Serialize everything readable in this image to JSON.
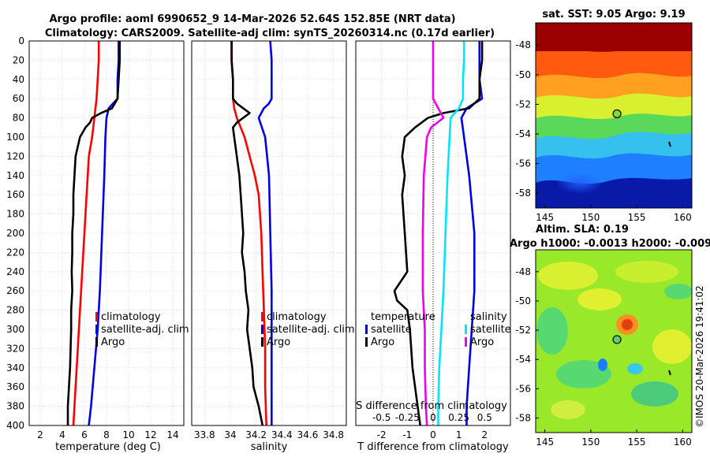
{
  "title": {
    "line1": "Argo profile: aoml 6990652_9 14-Mar-2026 52.64S 152.85E (NRT data)",
    "line2": "Climatology: CARS2009. Satellite-adj clim: synTS_20260314.nc (0.17d earlier)"
  },
  "credit": "©IMOS 20-Mar-2026 19:41:02",
  "colors": {
    "climatology": "#ff0000",
    "satellite": "#0000e0",
    "argo": "#000000",
    "salinity_diff": "#00e5ff",
    "salinity_sat_diff": "#ee00ee"
  },
  "chart_data": [
    {
      "type": "line",
      "title": "",
      "xlabel": "temperature (deg C)",
      "ylabel": "",
      "xlim": [
        1,
        15
      ],
      "ylim": [
        400,
        0
      ],
      "xticks": [
        2,
        4,
        6,
        8,
        10,
        12,
        14
      ],
      "yticks": [
        0,
        20,
        40,
        60,
        80,
        100,
        120,
        140,
        160,
        180,
        200,
        220,
        240,
        260,
        280,
        300,
        320,
        340,
        360,
        380,
        400
      ],
      "grid": true,
      "legend": [
        "climatology",
        "satellite-adj. clim",
        "Argo"
      ],
      "series": [
        {
          "name": "climatology",
          "color": "#ff0000",
          "depth": [
            0,
            20,
            40,
            60,
            70,
            80,
            90,
            100,
            120,
            160,
            200,
            240,
            280,
            320,
            360,
            400
          ],
          "values": [
            7.3,
            7.3,
            7.2,
            7.1,
            7.0,
            6.9,
            6.8,
            6.7,
            6.4,
            6.2,
            6.0,
            5.8,
            5.6,
            5.4,
            5.2,
            5.0
          ]
        },
        {
          "name": "satellite-adj. clim",
          "color": "#0000e0",
          "depth": [
            0,
            20,
            40,
            60,
            65,
            70,
            80,
            100,
            140,
            200,
            260,
            300,
            340,
            380,
            400
          ],
          "values": [
            9.1,
            9.1,
            9.0,
            9.0,
            8.6,
            8.2,
            8.0,
            7.9,
            7.8,
            7.6,
            7.4,
            7.2,
            6.9,
            6.6,
            6.4
          ]
        },
        {
          "name": "Argo",
          "color": "#000000",
          "depth": [
            0,
            20,
            40,
            60,
            70,
            75,
            80,
            85,
            90,
            100,
            110,
            120,
            140,
            160,
            180,
            200,
            220,
            240,
            260,
            280,
            300,
            320,
            340,
            360,
            380,
            400
          ],
          "values": [
            9.2,
            9.2,
            9.1,
            9.0,
            8.5,
            7.5,
            6.7,
            6.5,
            6.1,
            5.6,
            5.4,
            5.2,
            5.1,
            5.0,
            5.0,
            4.9,
            4.9,
            4.85,
            4.9,
            4.8,
            4.8,
            4.75,
            4.7,
            4.6,
            4.5,
            4.5
          ]
        }
      ]
    },
    {
      "type": "line",
      "title": "",
      "xlabel": "salinity",
      "ylabel": "",
      "xlim": [
        33.7,
        34.9
      ],
      "ylim": [
        400,
        0
      ],
      "xticks": [
        33.8,
        34.0,
        34.2,
        34.4,
        34.6,
        34.8
      ],
      "xticklabels": [
        "33.8",
        "34",
        "34.2",
        "34.4",
        "34.6",
        "34.8"
      ],
      "grid": true,
      "legend": [
        "climatology",
        "satellite-adj. clim",
        "Argo"
      ],
      "series": [
        {
          "name": "climatology",
          "color": "#ff0000",
          "depth": [
            0,
            20,
            40,
            60,
            70,
            80,
            90,
            100,
            120,
            140,
            160,
            200,
            240,
            280,
            320,
            360,
            400
          ],
          "values": [
            34.01,
            34.01,
            34.02,
            34.02,
            34.03,
            34.05,
            34.08,
            34.11,
            34.15,
            34.19,
            34.22,
            34.24,
            34.25,
            34.26,
            34.27,
            34.27,
            34.28
          ]
        },
        {
          "name": "satellite-adj. clim",
          "color": "#0000e0",
          "depth": [
            0,
            20,
            40,
            60,
            65,
            70,
            80,
            100,
            140,
            200,
            260,
            300,
            340,
            380,
            400
          ],
          "values": [
            34.31,
            34.32,
            34.32,
            34.32,
            34.3,
            34.26,
            34.22,
            34.27,
            34.3,
            34.31,
            34.32,
            34.32,
            34.32,
            34.32,
            34.32
          ]
        },
        {
          "name": "Argo",
          "color": "#000000",
          "depth": [
            0,
            20,
            40,
            60,
            65,
            70,
            75,
            80,
            85,
            90,
            100,
            120,
            140,
            160,
            180,
            200,
            220,
            240,
            260,
            280,
            300,
            320,
            340,
            360,
            380,
            400
          ],
          "values": [
            34.01,
            34.01,
            34.02,
            34.02,
            34.05,
            34.1,
            34.15,
            34.1,
            34.05,
            34.02,
            34.03,
            34.05,
            34.07,
            34.08,
            34.09,
            34.1,
            34.09,
            34.11,
            34.12,
            34.14,
            34.13,
            34.15,
            34.17,
            34.18,
            34.22,
            34.25
          ]
        }
      ]
    },
    {
      "type": "line",
      "title": "",
      "xlabel": "T difference from climatology",
      "ylabel": "",
      "xlim": [
        -3,
        3
      ],
      "ylim": [
        400,
        0
      ],
      "xticks": [
        -2,
        -1,
        0,
        1,
        2
      ],
      "secondary_xlabel": "S difference from climatology",
      "secondary_xticks": [
        -0.5,
        -0.25,
        0,
        0.25,
        0.5
      ],
      "secondary_xticklabels": [
        "-0.5",
        "-0.25",
        "0",
        "0.25",
        "0.5"
      ],
      "grid": true,
      "legend_temperature_title": "temperature",
      "legend_salinity_title": "salinity",
      "legend_temperature": [
        "satellite",
        "Argo"
      ],
      "legend_salinity": [
        "satellite",
        "Argo"
      ],
      "series": [
        {
          "name": "T satellite - clim",
          "color": "#0000e0",
          "depth": [
            0,
            20,
            40,
            60,
            70,
            80,
            100,
            140,
            200,
            260,
            300,
            340,
            380,
            400
          ],
          "values": [
            1.8,
            1.8,
            1.8,
            1.9,
            1.3,
            1.1,
            1.2,
            1.4,
            1.6,
            1.6,
            1.5,
            1.4,
            1.3,
            1.3
          ]
        },
        {
          "name": "T Argo - clim",
          "color": "#000000",
          "depth": [
            0,
            20,
            40,
            60,
            70,
            75,
            80,
            90,
            100,
            120,
            140,
            160,
            200,
            240,
            260,
            270,
            280,
            300,
            340,
            380,
            400
          ],
          "values": [
            1.9,
            1.9,
            1.8,
            1.8,
            1.4,
            0.4,
            -0.2,
            -0.7,
            -1.1,
            -1.2,
            -1.1,
            -1.2,
            -1.1,
            -1.0,
            -1.5,
            -1.4,
            -1.0,
            -0.9,
            -0.8,
            -0.6,
            -0.5
          ]
        },
        {
          "name": "S satellite - clim",
          "color": "#00e5ff",
          "depth": [
            0,
            20,
            40,
            60,
            70,
            80,
            100,
            140,
            200,
            260,
            300,
            340,
            380,
            400
          ],
          "values": [
            0.3,
            0.3,
            0.29,
            0.29,
            0.25,
            0.17,
            0.16,
            0.14,
            0.12,
            0.1,
            0.08,
            0.06,
            0.05,
            0.05
          ]
        },
        {
          "name": "S Argo - clim",
          "color": "#ee00ee",
          "depth": [
            0,
            20,
            40,
            60,
            70,
            80,
            90,
            100,
            140,
            200,
            260,
            300,
            340,
            380,
            400
          ],
          "values": [
            0.0,
            0.0,
            0.0,
            0.0,
            0.05,
            0.1,
            -0.02,
            -0.06,
            -0.09,
            -0.1,
            -0.1,
            -0.08,
            -0.08,
            -0.07,
            -0.06
          ]
        }
      ]
    },
    {
      "type": "heatmap",
      "title": "sat. SST: 9.05 Argo: 9.19",
      "xlim": [
        144,
        161
      ],
      "ylim": [
        -59,
        -46.5
      ],
      "xticks": [
        145,
        150,
        155,
        160
      ],
      "yticks": [
        -48,
        -50,
        -52,
        -54,
        -56,
        -58
      ],
      "argo_position": {
        "lon": 152.85,
        "lat": -52.64
      }
    },
    {
      "type": "heatmap",
      "title_line1": "Altim. SLA: 0.19",
      "title_line2": "Argo h1000: -0.0013 h2000: -0.009",
      "xlim": [
        144,
        161
      ],
      "ylim": [
        -59,
        -46.5
      ],
      "xticks": [
        145,
        150,
        155,
        160
      ],
      "yticks": [
        -48,
        -50,
        -52,
        -54,
        -56,
        -58
      ],
      "argo_position": {
        "lon": 152.85,
        "lat": -52.64
      }
    }
  ]
}
